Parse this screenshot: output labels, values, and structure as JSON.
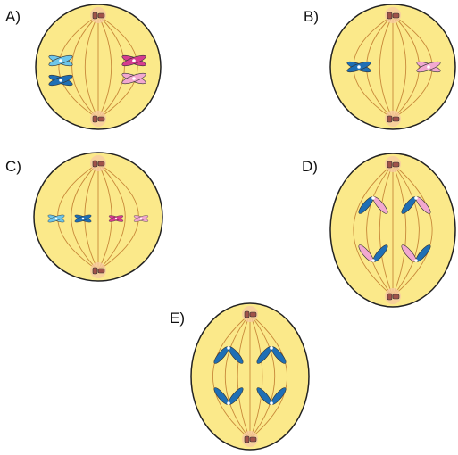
{
  "options": [
    {
      "label": "A)"
    },
    {
      "label": "B)"
    },
    {
      "label": "C)"
    },
    {
      "label": "D)"
    },
    {
      "label": "E)"
    }
  ]
}
